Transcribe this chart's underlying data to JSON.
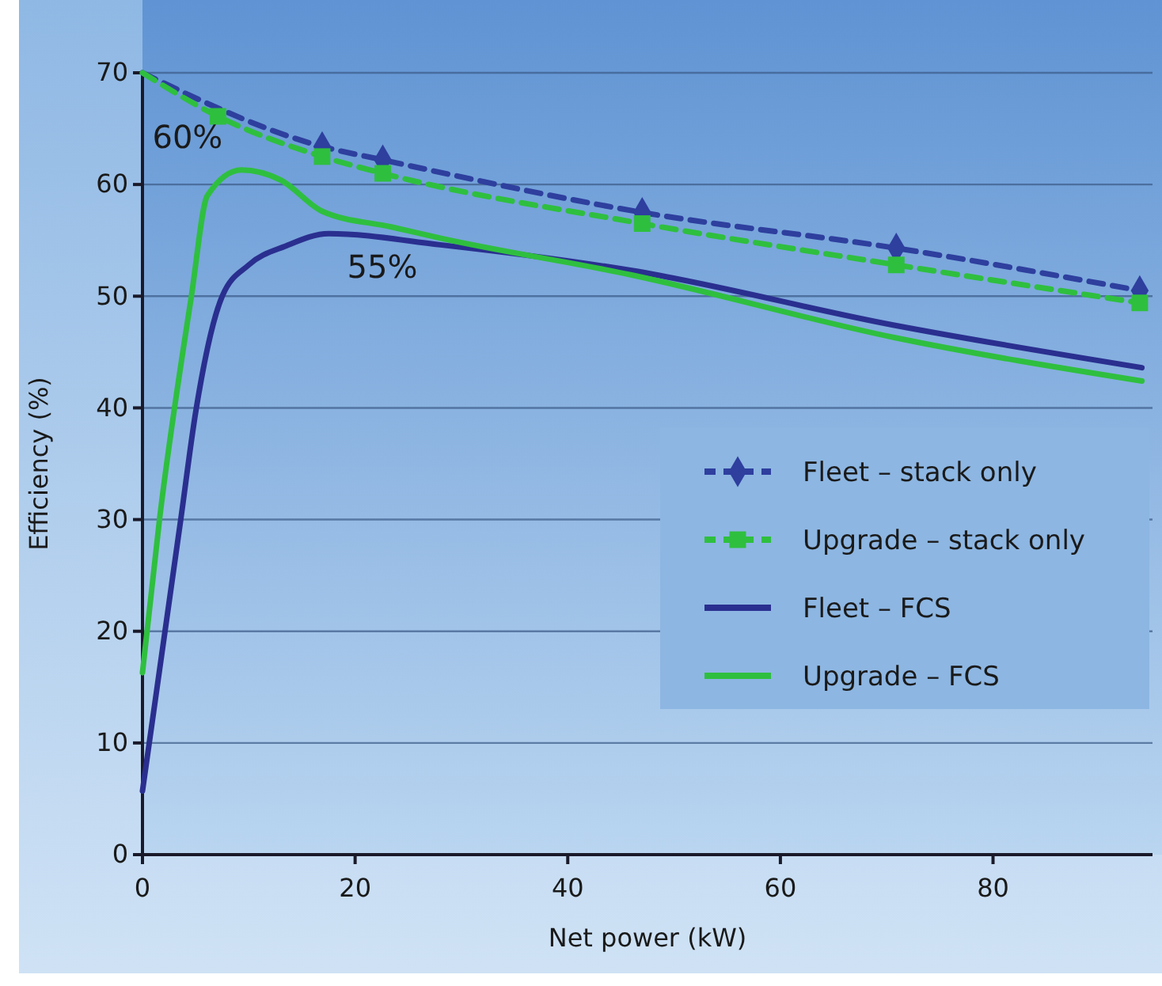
{
  "chart_data": {
    "type": "line",
    "xlabel": "Net power (kW)",
    "ylabel": "Efficiency (%)",
    "xlim": [
      0,
      95
    ],
    "ylim": [
      0,
      70
    ],
    "xticks": [
      0,
      20,
      40,
      60,
      80
    ],
    "yticks": [
      0,
      10,
      20,
      30,
      40,
      50,
      60,
      70
    ],
    "grid": "y",
    "legend": "right",
    "annotations": [
      {
        "text": "60%",
        "x": 9.3,
        "y": 61.3
      },
      {
        "text": "55%",
        "x": 17.5,
        "y": 55.6
      }
    ],
    "series": [
      {
        "name": "Fleet – stack only",
        "color": "#2e3f9e",
        "marker": "diamond",
        "line_style": "dashed",
        "x": [
          0,
          16.9,
          22.6,
          47,
          70.9,
          93.8
        ],
        "values": [
          70,
          63.4,
          62.2,
          57.5,
          54.3,
          50.5
        ]
      },
      {
        "name": "Upgrade – stack only",
        "color": "#2fbf3f",
        "marker": "square",
        "line_style": "dashed",
        "x": [
          0,
          7.1,
          16.9,
          22.6,
          47,
          70.9,
          93.8
        ],
        "values": [
          70,
          66.1,
          62.5,
          61.0,
          56.5,
          52.8,
          49.4
        ]
      },
      {
        "name": "Fleet – FCS",
        "color": "#2a2f8f",
        "marker": "none",
        "line_style": "solid",
        "x": [
          0,
          3.6,
          5,
          7.5,
          10,
          13.5,
          17.5,
          28,
          46,
          70.7,
          94
        ],
        "values": [
          5.7,
          30,
          39.6,
          50,
          52.8,
          54.5,
          55.6,
          54.6,
          52.3,
          47.4,
          43.6
        ]
      },
      {
        "name": "Upgrade – FCS",
        "color": "#2fbf3f",
        "marker": "none",
        "line_style": "solid",
        "x": [
          0,
          1.6,
          4.6,
          6.1,
          9.3,
          13,
          16.9,
          23.4,
          28,
          46,
          70.7,
          94
        ],
        "values": [
          16.3,
          30,
          50,
          59,
          61.3,
          60.4,
          57.6,
          56.2,
          55.2,
          51.9,
          46.3,
          42.4
        ]
      }
    ]
  }
}
